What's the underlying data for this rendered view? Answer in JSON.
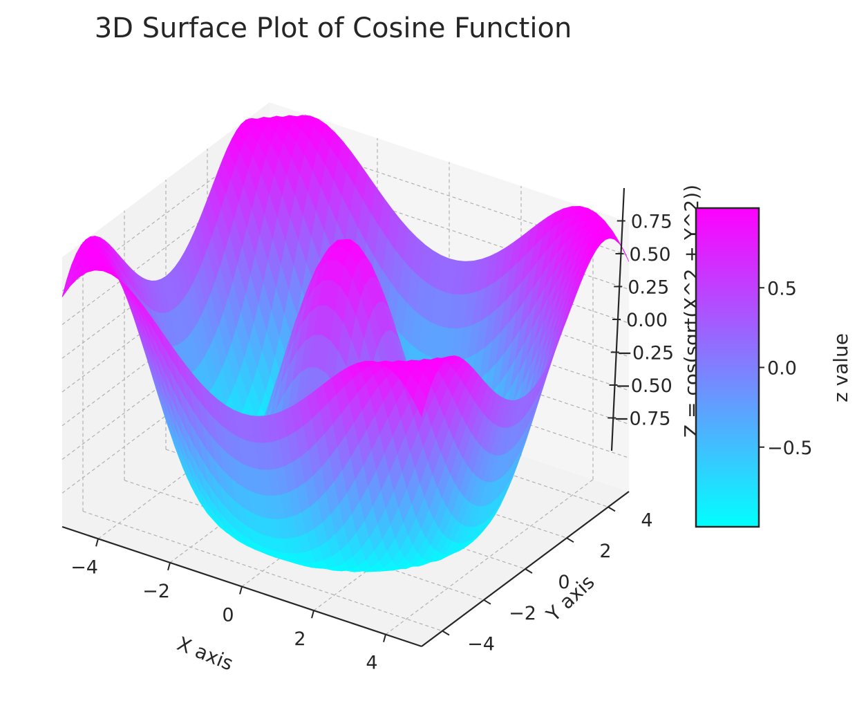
{
  "chart_data": {
    "type": "surface3d",
    "title": "3D Surface Plot of Cosine Function",
    "function": "Z = cos(sqrt(X^2 + Y^2))",
    "x": {
      "label": "X axis",
      "range": [
        -5,
        5
      ],
      "ticks": [
        -4,
        -2,
        0,
        2,
        4
      ],
      "tick_labels": [
        "−4",
        "−2",
        "0",
        "2",
        "4"
      ]
    },
    "y": {
      "label": "Y axis",
      "range": [
        -5,
        5
      ],
      "ticks": [
        -4,
        -2,
        0,
        2,
        4
      ],
      "tick_labels": [
        "−4",
        "−2",
        "0",
        "2",
        "4"
      ]
    },
    "z": {
      "label": "Z = cos(sqrt(X^2 + Y^2))",
      "range": [
        -1,
        1
      ],
      "ticks": [
        -0.75,
        -0.5,
        -0.25,
        0,
        0.25,
        0.5,
        0.75
      ],
      "tick_labels": [
        "−0.75",
        "−0.50",
        "−0.25",
        "0.00",
        "0.25",
        "0.50",
        "0.75"
      ]
    },
    "colormap": {
      "name": "cool",
      "low": "#00ffff",
      "high": "#ff00ff"
    },
    "colorbar": {
      "label": "z value",
      "range": [
        -1,
        1
      ],
      "ticks": [
        -0.5,
        0,
        0.5
      ],
      "tick_labels": [
        "−0.5",
        "0.0",
        "0.5"
      ]
    },
    "grid": true
  }
}
